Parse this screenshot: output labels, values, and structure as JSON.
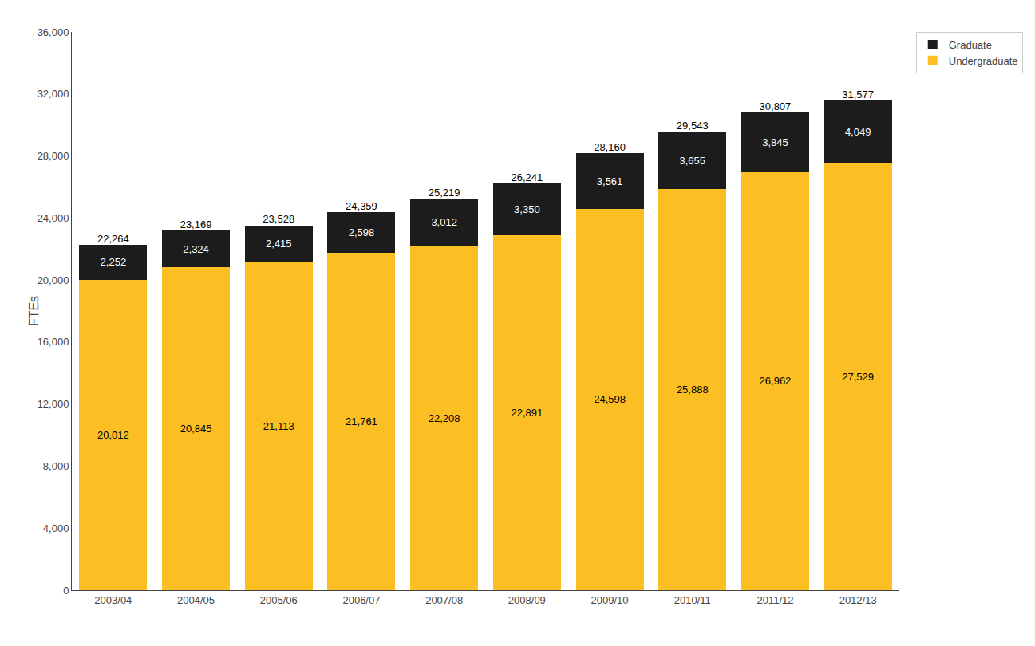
{
  "chart_data": {
    "type": "bar",
    "stacked": true,
    "categories": [
      "2003/04",
      "2004/05",
      "2005/06",
      "2006/07",
      "2007/08",
      "2008/09",
      "2009/10",
      "2010/11",
      "2011/12",
      "2012/13"
    ],
    "series": [
      {
        "name": "Undergraduate",
        "color": "#FBBF24",
        "values": [
          20012,
          20845,
          21113,
          21761,
          22208,
          22891,
          24598,
          25888,
          26962,
          27529
        ],
        "value_labels": [
          "20,012",
          "20,845",
          "21,113",
          "21,761",
          "22,208",
          "22,891",
          "24,598",
          "25,888",
          "26,962",
          "27,529"
        ]
      },
      {
        "name": "Graduate",
        "color": "#1C1C1C",
        "values": [
          2252,
          2324,
          2415,
          2598,
          3012,
          3350,
          3561,
          3655,
          3845,
          4049
        ],
        "value_labels": [
          "2,252",
          "2,324",
          "2,415",
          "2,598",
          "3,012",
          "3,350",
          "3,561",
          "3,655",
          "3,845",
          "4,049"
        ]
      }
    ],
    "totals": [
      22264,
      23169,
      23528,
      24359,
      25219,
      26241,
      28160,
      29543,
      30807,
      31577
    ],
    "total_labels": [
      "22,264",
      "23,169",
      "23,528",
      "24,359",
      "25,219",
      "26,241",
      "28,160",
      "29,543",
      "30,807",
      "31,577"
    ],
    "ylabel": "FTEs",
    "ylim": [
      0,
      36000
    ],
    "yticks": [
      0,
      {
        "value": 4000,
        "label": "4,000"
      },
      {
        "value": 8000,
        "label": "8,000"
      },
      {
        "value": 12000,
        "label": "12,000"
      },
      {
        "value": 16000,
        "label": "16,000"
      },
      {
        "value": 20000,
        "label": "20,000"
      },
      {
        "value": 24000,
        "label": "24,000"
      },
      {
        "value": 28000,
        "label": "28,000"
      },
      {
        "value": 32000,
        "label": "32,000"
      },
      {
        "value": 36000,
        "label": "36,000"
      }
    ],
    "grid": false,
    "legend": "upper right",
    "data_labels": true
  }
}
